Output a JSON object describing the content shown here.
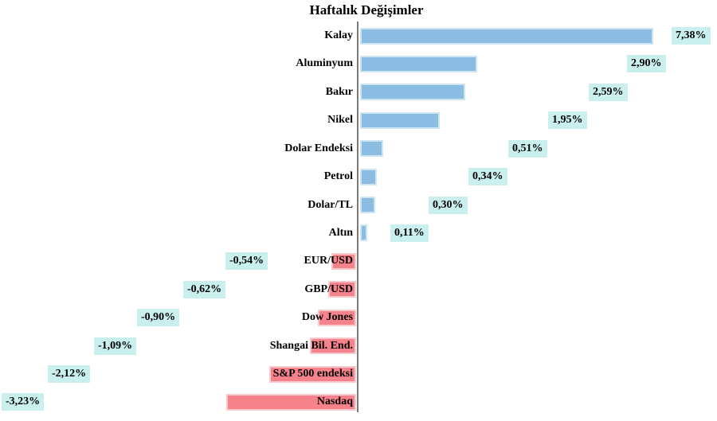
{
  "title": "Haftalık Değişimler",
  "chart_data": {
    "type": "bar",
    "orientation": "horizontal",
    "title": "Haftalık Değişimler",
    "value_unit": "percent",
    "decimal_separator": ",",
    "baseline": 0,
    "xlim": [
      -3.5,
      9.2
    ],
    "grid": false,
    "legend": "none",
    "categories": [
      "Kalay",
      "Aluminyum",
      "Bakır",
      "Nikel",
      "Dolar Endeksi",
      "Petrol",
      "Dolar/TL",
      "Altın",
      "EUR/USD",
      "GBP/USD",
      "Dow Jones",
      "Shangai Bil. End.",
      "S&P 500 endeksi",
      "Nasdaq"
    ],
    "values": [
      7.38,
      2.9,
      2.59,
      1.95,
      0.51,
      0.34,
      0.3,
      0.11,
      -0.54,
      -0.62,
      -0.9,
      -1.09,
      -2.12,
      -3.23
    ],
    "value_labels": [
      "7,38%",
      "2,90%",
      "2,59%",
      "1,95%",
      "0,51%",
      "0,34%",
      "0,30%",
      "0,11%",
      "-0,54%",
      "-0,62%",
      "-0,90%",
      "-1,09%",
      "-2,12%",
      "-3,23%"
    ],
    "colors": {
      "positive_bar": "#8bbce1",
      "positive_bar_border": "#cde4f3",
      "negative_bar": "#f6838b",
      "negative_bar_border": "#fbcacd",
      "value_label_background": "#c9f0ee",
      "axis_line": "#7a7a7a",
      "text": "#000000",
      "background": "#ffffff"
    }
  }
}
